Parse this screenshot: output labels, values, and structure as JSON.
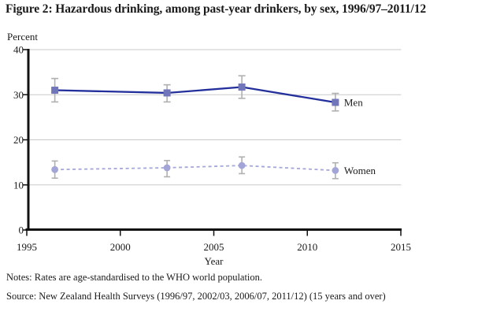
{
  "figure": {
    "title": "Figure 2: Hazardous drinking, among past-year drinkers, by sex, 1996/97–2011/12",
    "notes": "Notes: Rates are age-standardised to the WHO world population.",
    "source": "Source: New Zealand Health Surveys (1996/97, 2002/03, 2006/07, 2011/12) (15 years and over)"
  },
  "chart_data": {
    "type": "line",
    "title": "Figure 2: Hazardous drinking, among past-year drinkers, by sex, 1996/97–2011/12",
    "xlabel": "Year",
    "ylabel": "Percent",
    "xlim": [
      1995,
      2015
    ],
    "ylim": [
      0,
      40
    ],
    "xticks": [
      1995,
      2000,
      2005,
      2010,
      2015
    ],
    "yticks": [
      0,
      10,
      20,
      30,
      40
    ],
    "grid": "horizontal gridlines at y ticks",
    "error_bars": true,
    "legend_position": "labels at right end of each line",
    "x": [
      1996.5,
      2002.5,
      2006.5,
      2011.5
    ],
    "x_survey_labels": [
      "1996/97",
      "2002/03",
      "2006/07",
      "2011/12"
    ],
    "series": [
      {
        "name": "Men",
        "values": [
          31.0,
          30.4,
          31.7,
          28.3
        ],
        "ci_low": [
          28.4,
          28.4,
          29.2,
          26.4
        ],
        "ci_high": [
          33.6,
          32.2,
          34.2,
          30.3
        ],
        "line_style": "solid",
        "marker": "square",
        "line_color": "#232f9b",
        "marker_color": "#7176bb"
      },
      {
        "name": "Women",
        "values": [
          13.4,
          13.8,
          14.3,
          13.2
        ],
        "ci_low": [
          11.5,
          11.8,
          12.5,
          11.4
        ],
        "ci_high": [
          15.3,
          15.4,
          16.2,
          14.9
        ],
        "line_style": "dashed",
        "marker": "circle",
        "line_color": "#a5a7d9",
        "marker_color": "#a3a5d6"
      }
    ],
    "styles": {
      "axis_color": "#111111",
      "grid_color": "#c9c9c9",
      "error_bar_color": "#b0b0b0",
      "text_color": "#1a1a1a",
      "background": "#ffffff"
    }
  }
}
